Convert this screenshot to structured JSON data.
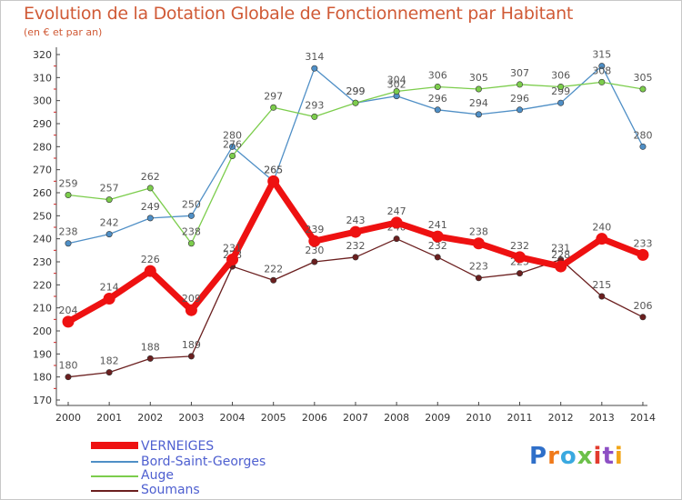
{
  "chart_data": {
    "type": "line",
    "title": "Evolution de la Dotation Globale de Fonctionnement par Habitant",
    "subtitle": "(en € et par an)",
    "xlabel": "",
    "ylabel": "",
    "ylim": [
      170,
      320
    ],
    "ytick_step": 10,
    "grid": false,
    "legend_position": "bottom-left",
    "categories": [
      "2000",
      "2001",
      "2002",
      "2003",
      "2004",
      "2005",
      "2006",
      "2007",
      "2008",
      "2009",
      "2010",
      "2011",
      "2012",
      "2013",
      "2014"
    ],
    "series": [
      {
        "name": "Bord-Saint-Georges",
        "color": "#4f8fc6",
        "values": [
          238,
          242,
          249,
          250,
          280,
          265,
          314,
          299,
          302,
          296,
          294,
          296,
          299,
          315,
          280
        ]
      },
      {
        "name": "Auge",
        "color": "#7ccd4c",
        "values": [
          259,
          257,
          262,
          238,
          276,
          297,
          293,
          299,
          304,
          306,
          305,
          307,
          306,
          308,
          305
        ]
      },
      {
        "name": "Soumans",
        "color": "#6b1f1f",
        "values": [
          180,
          182,
          188,
          189,
          228,
          222,
          230,
          232,
          240,
          232,
          223,
          225,
          231,
          215,
          206
        ]
      },
      {
        "name": "VERNEIGES",
        "color": "#ee1111",
        "values": [
          204,
          214,
          226,
          209,
          231,
          265,
          239,
          243,
          247,
          241,
          238,
          232,
          228,
          240,
          233
        ]
      }
    ],
    "legend_order": [
      "VERNEIGES",
      "Bord-Saint-Georges",
      "Auge",
      "Soumans"
    ]
  },
  "brand": {
    "name": "Proxiti",
    "letters": [
      "P",
      "r",
      "o",
      "x",
      "i",
      "t",
      "i"
    ],
    "letter_colors": [
      "#2f6fc9",
      "#f07a1a",
      "#3aa9e0",
      "#6cc04a",
      "#e23b2e",
      "#8d4fc4",
      "#f2a516"
    ]
  }
}
